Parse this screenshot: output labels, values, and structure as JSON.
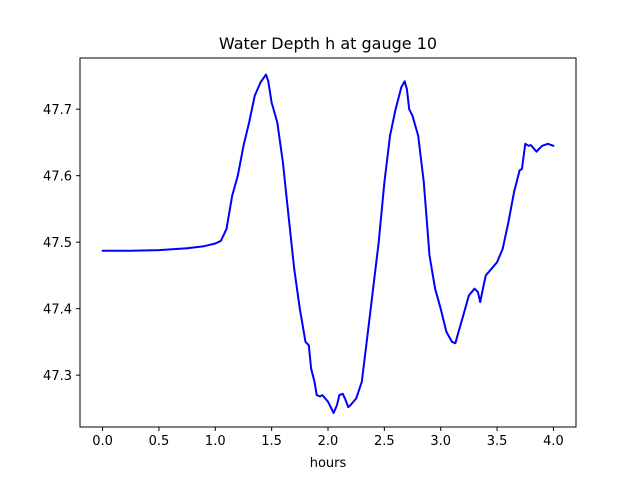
{
  "chart_data": {
    "type": "line",
    "title": "Water Depth h at gauge 10",
    "xlabel": "hours",
    "ylabel": "",
    "xlim": [
      -0.2,
      4.2
    ],
    "ylim": [
      47.222,
      47.777
    ],
    "x_ticks": [
      0.0,
      0.5,
      1.0,
      1.5,
      2.0,
      2.5,
      3.0,
      3.5,
      4.0
    ],
    "x_tick_labels": [
      "0.0",
      "0.5",
      "1.0",
      "1.5",
      "2.0",
      "2.5",
      "3.0",
      "3.5",
      "4.0"
    ],
    "y_ticks": [
      47.3,
      47.4,
      47.5,
      47.6,
      47.7
    ],
    "y_tick_labels": [
      "47.3",
      "47.4",
      "47.5",
      "47.6",
      "47.7"
    ],
    "grid": false,
    "legend": "none",
    "series": [
      {
        "color": "#0000ff",
        "x": [
          0.0,
          0.25,
          0.5,
          0.75,
          0.9,
          1.0,
          1.05,
          1.1,
          1.15,
          1.2,
          1.25,
          1.3,
          1.35,
          1.4,
          1.45,
          1.47,
          1.5,
          1.55,
          1.6,
          1.65,
          1.7,
          1.75,
          1.8,
          1.83,
          1.85,
          1.88,
          1.9,
          1.93,
          1.95,
          2.0,
          2.05,
          2.08,
          2.1,
          2.13,
          2.15,
          2.18,
          2.2,
          2.25,
          2.3,
          2.35,
          2.4,
          2.45,
          2.5,
          2.55,
          2.6,
          2.65,
          2.68,
          2.7,
          2.72,
          2.75,
          2.8,
          2.85,
          2.9,
          2.95,
          3.0,
          3.05,
          3.1,
          3.13,
          3.15,
          3.2,
          3.25,
          3.3,
          3.33,
          3.35,
          3.38,
          3.4,
          3.45,
          3.5,
          3.55,
          3.6,
          3.65,
          3.7,
          3.72,
          3.75,
          3.78,
          3.8,
          3.85,
          3.87,
          3.9,
          3.95,
          4.0
        ],
        "values": [
          47.487,
          47.487,
          47.488,
          47.491,
          47.494,
          47.498,
          47.502,
          47.52,
          47.57,
          47.6,
          47.645,
          47.68,
          47.72,
          47.74,
          47.752,
          47.742,
          47.71,
          47.68,
          47.62,
          47.54,
          47.46,
          47.4,
          47.35,
          47.345,
          47.31,
          47.29,
          47.27,
          47.268,
          47.27,
          47.26,
          47.243,
          47.255,
          47.27,
          47.272,
          47.265,
          47.252,
          47.255,
          47.265,
          47.29,
          47.36,
          47.43,
          47.5,
          47.59,
          47.66,
          47.7,
          47.733,
          47.742,
          47.73,
          47.7,
          47.69,
          47.66,
          47.59,
          47.48,
          47.43,
          47.4,
          47.365,
          47.35,
          47.348,
          47.36,
          47.39,
          47.42,
          47.43,
          47.425,
          47.41,
          47.435,
          47.45,
          47.46,
          47.47,
          47.49,
          47.53,
          47.575,
          47.608,
          47.61,
          47.648,
          47.645,
          47.646,
          47.636,
          47.64,
          47.645,
          47.648,
          47.645
        ]
      }
    ]
  }
}
